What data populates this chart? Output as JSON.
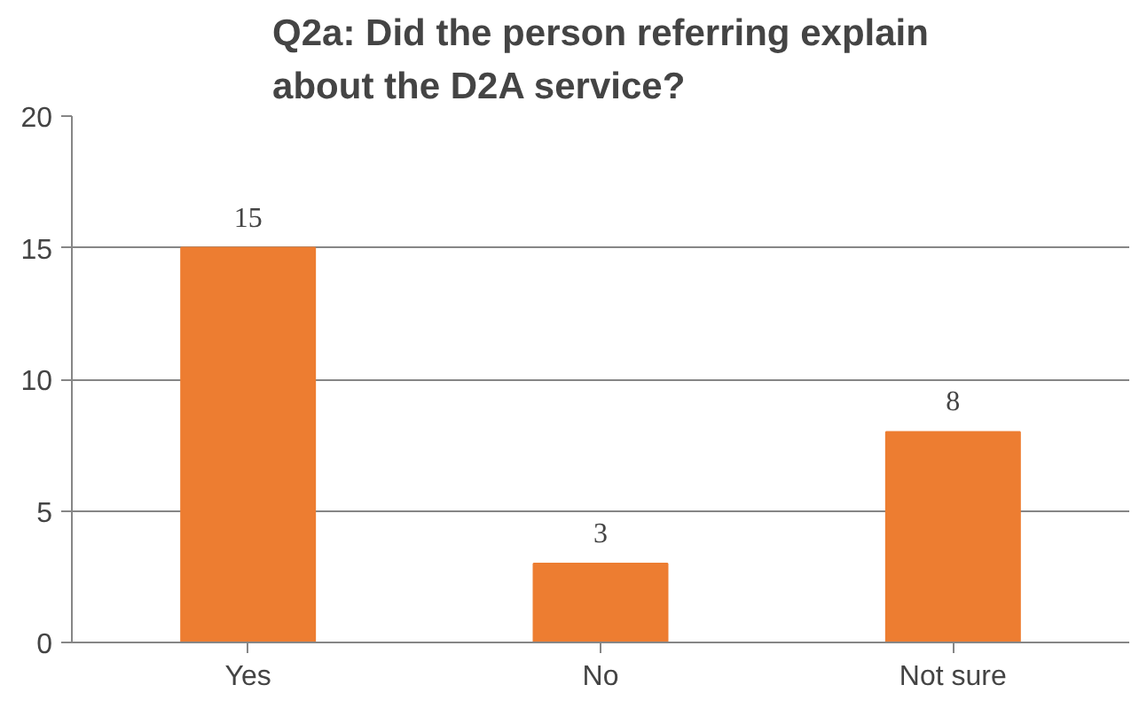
{
  "chart_data": {
    "type": "bar",
    "title": "Q2a: Did the person referring explain about the D2A service?",
    "categories": [
      "Yes",
      "No",
      "Not sure"
    ],
    "values": [
      15,
      3,
      8
    ],
    "color": "#ed7d31",
    "ylim": [
      0,
      20
    ],
    "yticks": [
      0,
      5,
      10,
      15,
      20
    ],
    "grid": "y",
    "data_labels": true
  }
}
